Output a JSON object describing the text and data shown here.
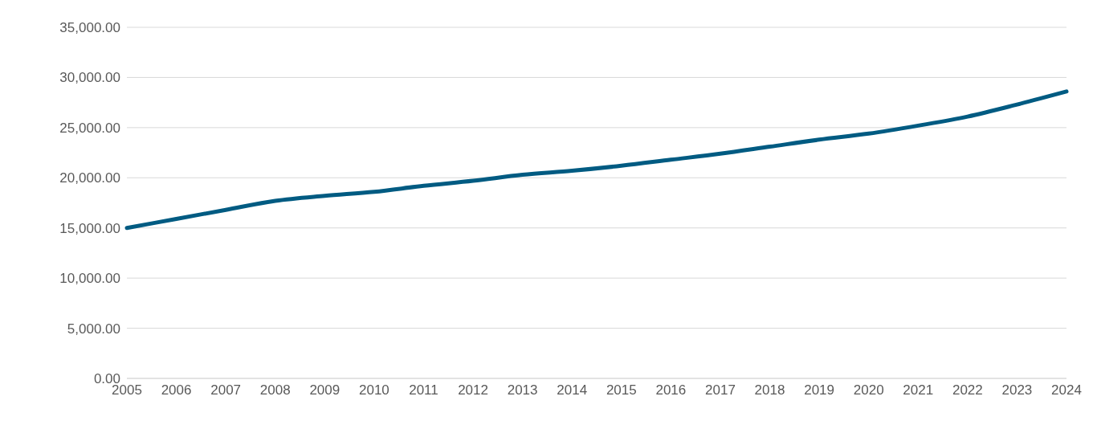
{
  "chart_data": {
    "type": "line",
    "categories": [
      "2005",
      "2006",
      "2007",
      "2008",
      "2009",
      "2010",
      "2011",
      "2012",
      "2013",
      "2014",
      "2015",
      "2016",
      "2017",
      "2018",
      "2019",
      "2020",
      "2021",
      "2022",
      "2023",
      "2024"
    ],
    "series": [
      {
        "color": "#005b82",
        "values": [
          15000,
          15900,
          16800,
          17700,
          18200,
          18600,
          19200,
          19700,
          20300,
          20700,
          21200,
          21800,
          22400,
          23100,
          23800,
          24400,
          25200,
          26100,
          27300,
          28600
        ]
      }
    ],
    "ylim": [
      0,
      35000
    ],
    "yticks": [
      {
        "value": 0,
        "label": "0.00"
      },
      {
        "value": 5000,
        "label": "5,000.00"
      },
      {
        "value": 10000,
        "label": "10,000.00"
      },
      {
        "value": 15000,
        "label": "15,000.00"
      },
      {
        "value": 20000,
        "label": "20,000.00"
      },
      {
        "value": 25000,
        "label": "25,000.00"
      },
      {
        "value": 30000,
        "label": "30,000.00"
      },
      {
        "value": 35000,
        "label": "35,000.00"
      }
    ],
    "grid": "y",
    "legend": false,
    "marker": "none",
    "line_style": "solid"
  }
}
